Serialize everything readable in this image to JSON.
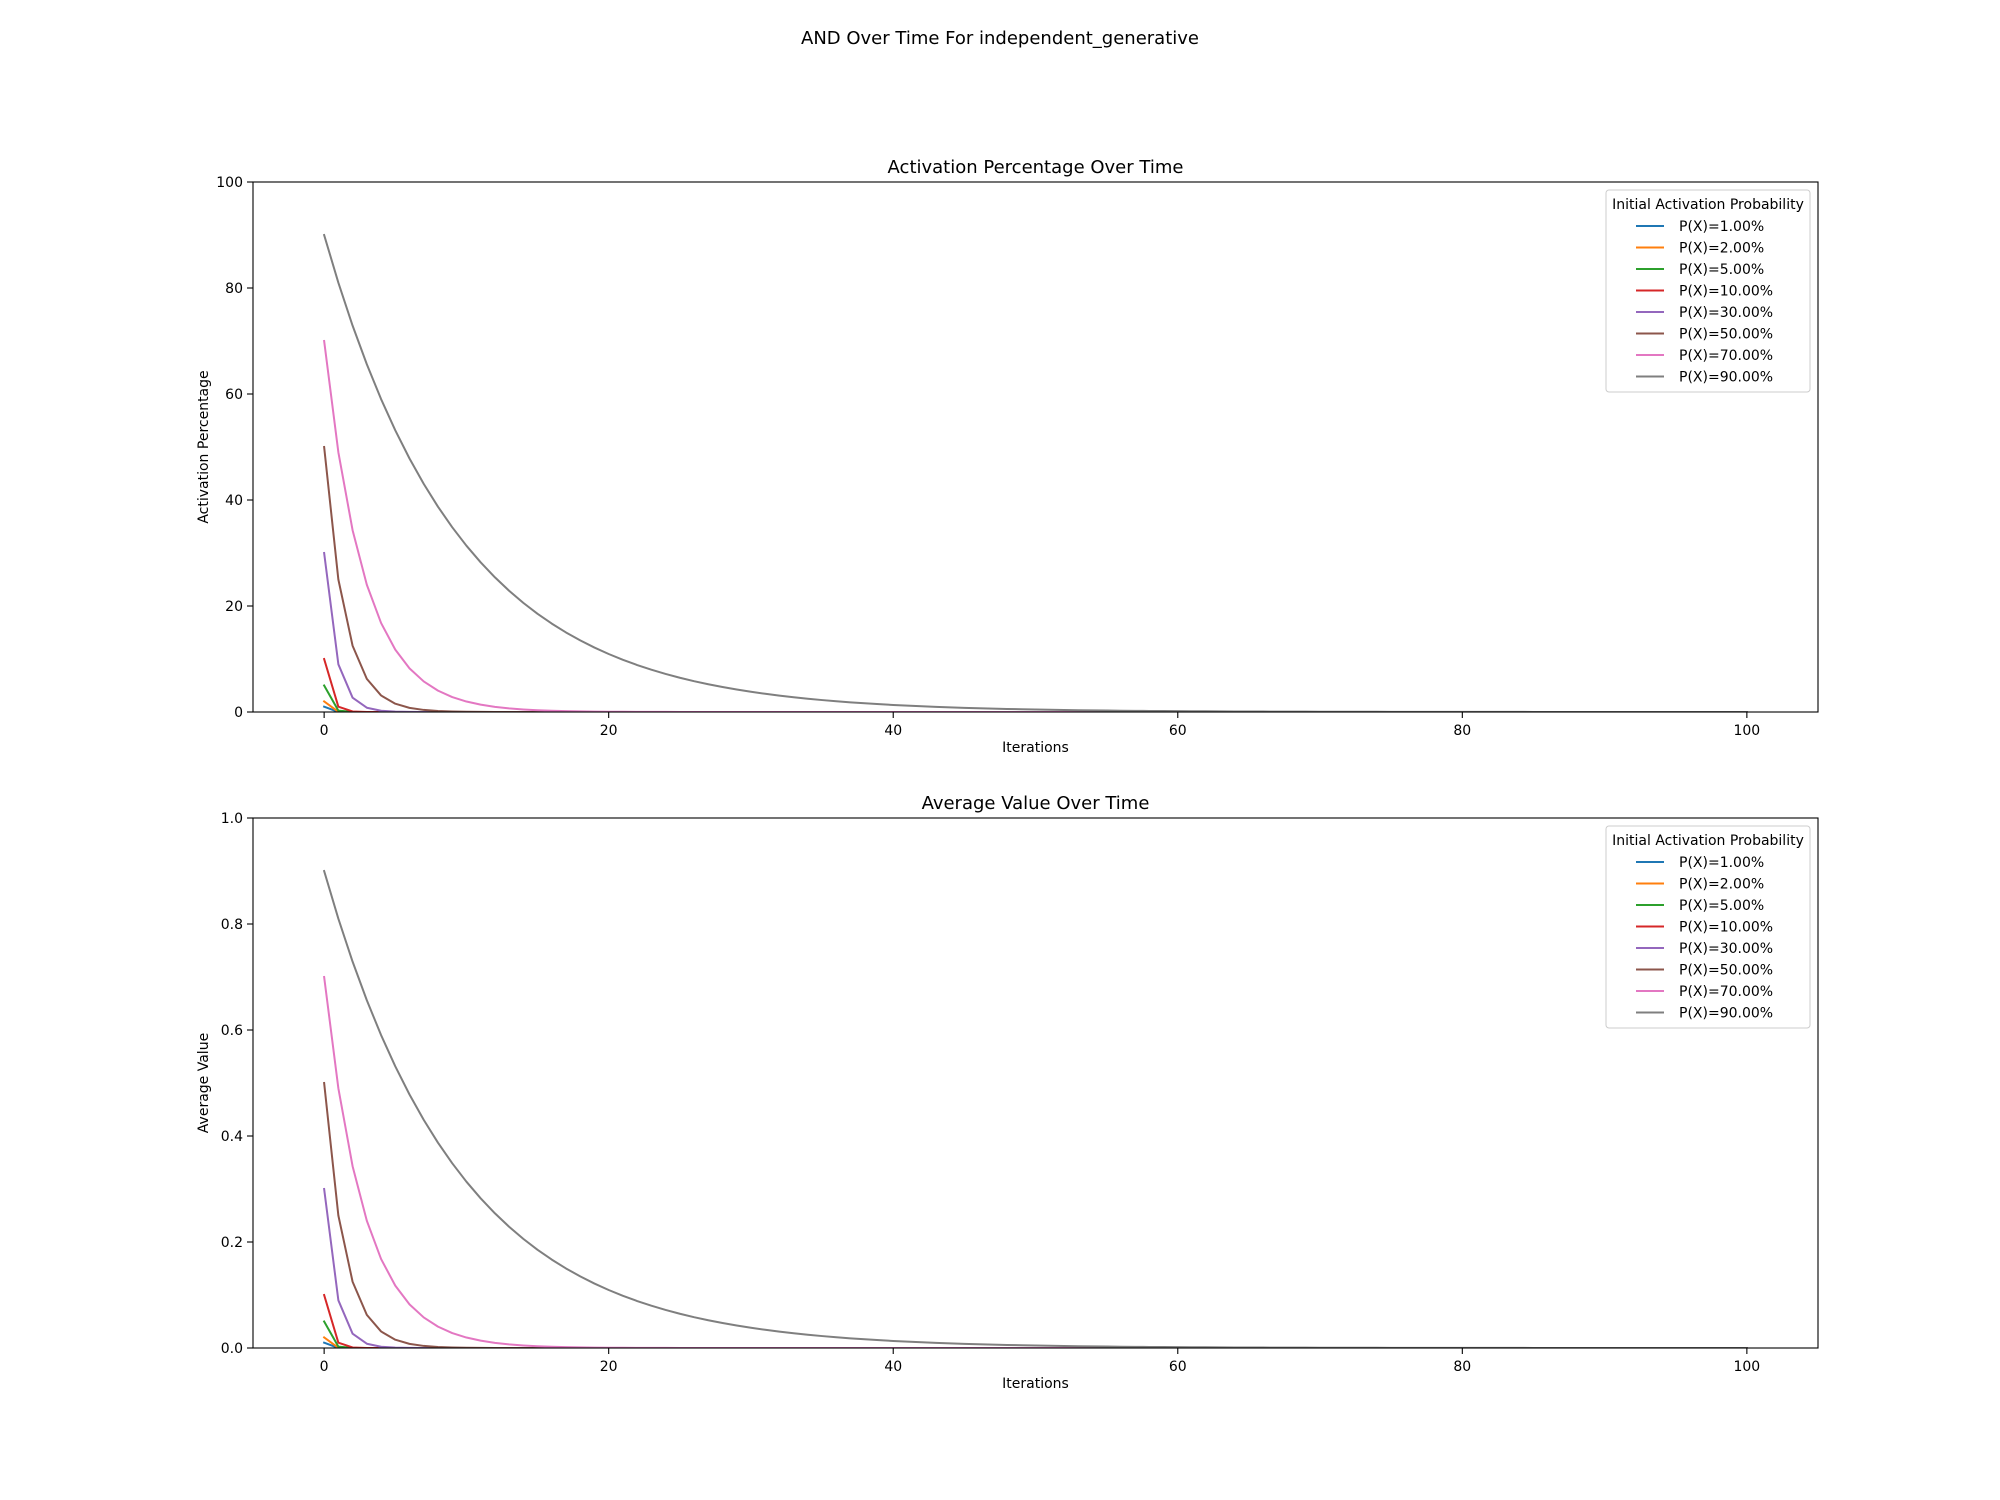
{
  "figure": {
    "suptitle": "AND Over Time For independent_generative"
  },
  "chart_data": [
    {
      "type": "line",
      "title": "Activation Percentage Over Time",
      "xlabel": "Iterations",
      "ylabel": "Activation Percentage",
      "xlim": [
        -5,
        105
      ],
      "ylim": [
        0,
        100
      ],
      "xticks": [
        0,
        20,
        40,
        60,
        80,
        100
      ],
      "yticks": [
        0,
        20,
        40,
        60,
        80,
        100
      ],
      "x_range": [
        0,
        100
      ],
      "y_model": "geometric decay: y(n) = y0 * (P(X))^n",
      "legend": {
        "title": "Initial Activation Probability",
        "placement": "top-right"
      },
      "grid": false,
      "series": [
        {
          "name": "P(X)=1.00%",
          "color": "#1f77b4",
          "y0": 1,
          "ratio": 0.01
        },
        {
          "name": "P(X)=2.00%",
          "color": "#ff7f0e",
          "y0": 2,
          "ratio": 0.02
        },
        {
          "name": "P(X)=5.00%",
          "color": "#2ca02c",
          "y0": 5,
          "ratio": 0.05
        },
        {
          "name": "P(X)=10.00%",
          "color": "#d62728",
          "y0": 10,
          "ratio": 0.1
        },
        {
          "name": "P(X)=30.00%",
          "color": "#9467bd",
          "y0": 30,
          "ratio": 0.3
        },
        {
          "name": "P(X)=50.00%",
          "color": "#8c564b",
          "y0": 50,
          "ratio": 0.5
        },
        {
          "name": "P(X)=70.00%",
          "color": "#e377c2",
          "y0": 70,
          "ratio": 0.7
        },
        {
          "name": "P(X)=90.00%",
          "color": "#7f7f7f",
          "y0": 90,
          "ratio": 0.9
        }
      ]
    },
    {
      "type": "line",
      "title": "Average Value Over Time",
      "xlabel": "Iterations",
      "ylabel": "Average Value",
      "xlim": [
        -5,
        105
      ],
      "ylim": [
        0,
        1
      ],
      "xticks": [
        0,
        20,
        40,
        60,
        80,
        100
      ],
      "yticks": [
        0,
        0.2,
        0.4,
        0.6,
        0.8,
        1.0
      ],
      "x_range": [
        0,
        100
      ],
      "y_model": "geometric decay: y(n) = y0 * (P(X))^n",
      "legend": {
        "title": "Initial Activation Probability",
        "placement": "top-right"
      },
      "grid": false,
      "series": [
        {
          "name": "P(X)=1.00%",
          "color": "#1f77b4",
          "y0": 0.01,
          "ratio": 0.01
        },
        {
          "name": "P(X)=2.00%",
          "color": "#ff7f0e",
          "y0": 0.02,
          "ratio": 0.02
        },
        {
          "name": "P(X)=5.00%",
          "color": "#2ca02c",
          "y0": 0.05,
          "ratio": 0.05
        },
        {
          "name": "P(X)=10.00%",
          "color": "#d62728",
          "y0": 0.1,
          "ratio": 0.1
        },
        {
          "name": "P(X)=30.00%",
          "color": "#9467bd",
          "y0": 0.3,
          "ratio": 0.3
        },
        {
          "name": "P(X)=50.00%",
          "color": "#8c564b",
          "y0": 0.5,
          "ratio": 0.5
        },
        {
          "name": "P(X)=70.00%",
          "color": "#e377c2",
          "y0": 0.7,
          "ratio": 0.7
        },
        {
          "name": "P(X)=90.00%",
          "color": "#7f7f7f",
          "y0": 0.9,
          "ratio": 0.9
        }
      ]
    }
  ]
}
